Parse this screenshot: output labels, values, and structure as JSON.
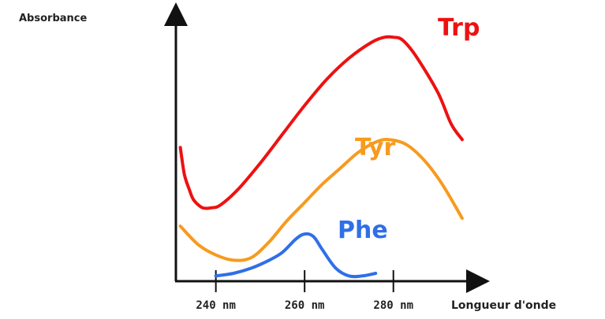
{
  "chart_data": {
    "type": "line",
    "ylabel": "Absorbance",
    "xlabel": "Longueur d'onde",
    "x_ticks": [
      "240 nm",
      "260 nm",
      "280 nm"
    ],
    "x_tick_values": [
      240,
      260,
      280
    ],
    "xlim": [
      231,
      298
    ],
    "ylim": [
      0,
      1
    ],
    "grid": false,
    "legend": "inline labels next to curves",
    "series": [
      {
        "name": "Trp",
        "color": "#ee1111",
        "x": [
          232,
          232.5,
          233,
          234,
          235,
          237,
          239,
          241,
          245,
          250,
          255,
          260,
          265,
          270,
          275,
          278,
          280,
          282,
          285,
          290,
          293,
          295.5
        ],
        "y": [
          0.51,
          0.45,
          0.4,
          0.35,
          0.31,
          0.28,
          0.28,
          0.29,
          0.35,
          0.45,
          0.56,
          0.67,
          0.77,
          0.85,
          0.91,
          0.93,
          0.93,
          0.92,
          0.86,
          0.72,
          0.6,
          0.54
        ]
      },
      {
        "name": "Tyr",
        "color": "#f79a1e",
        "x": [
          232,
          236,
          240,
          244,
          248,
          252,
          256,
          260,
          264,
          268,
          272,
          276,
          279,
          283,
          287,
          291,
          295.5
        ],
        "y": [
          0.21,
          0.14,
          0.1,
          0.08,
          0.09,
          0.15,
          0.23,
          0.3,
          0.37,
          0.43,
          0.49,
          0.53,
          0.54,
          0.52,
          0.46,
          0.37,
          0.24
        ]
      },
      {
        "name": "Phe",
        "color": "#2f6fe8",
        "x": [
          240,
          244,
          248,
          252,
          255,
          258,
          260,
          262,
          264,
          267,
          270,
          273,
          276
        ],
        "y": [
          0.02,
          0.03,
          0.05,
          0.08,
          0.11,
          0.16,
          0.18,
          0.17,
          0.12,
          0.05,
          0.02,
          0.02,
          0.03
        ]
      }
    ]
  }
}
